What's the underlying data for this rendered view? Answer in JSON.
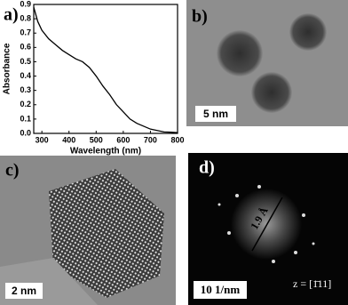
{
  "chart_data": {
    "type": "line",
    "panel": "a)",
    "xlabel": "Wavelength (nm)",
    "ylabel": "Absorbance",
    "x": [
      270,
      285,
      300,
      325,
      350,
      375,
      400,
      425,
      450,
      475,
      500,
      525,
      550,
      575,
      600,
      625,
      650,
      675,
      700,
      725,
      750,
      775,
      800
    ],
    "series": [
      {
        "color": "#000000",
        "values": [
          0.88,
          0.78,
          0.72,
          0.66,
          0.62,
          0.58,
          0.55,
          0.52,
          0.5,
          0.46,
          0.4,
          0.33,
          0.27,
          0.2,
          0.15,
          0.1,
          0.07,
          0.05,
          0.03,
          0.02,
          0.01,
          0.008,
          0.005
        ]
      }
    ],
    "xlim": [
      270,
      800
    ],
    "xticks": [
      300,
      400,
      500,
      600,
      700,
      800
    ],
    "ylim": [
      0,
      0.9
    ],
    "yticks": [
      0.0,
      0.1,
      0.2,
      0.3,
      0.4,
      0.5,
      0.6,
      0.7,
      0.8,
      0.9
    ]
  },
  "panels": [
    {
      "label": "b)",
      "scale": "5 nm"
    },
    {
      "label": "c)",
      "scale": "2 nm"
    },
    {
      "label": "d)",
      "scale": "10 1/nm",
      "spacing": "1.9 Å",
      "zone": "z = [1̄11]"
    }
  ]
}
